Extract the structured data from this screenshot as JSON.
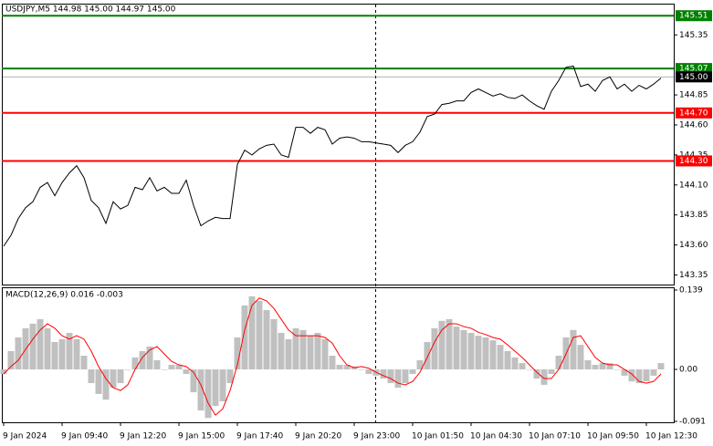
{
  "chart_data": [
    {
      "type": "line",
      "title": "USDJPY,M5  144.98 145.00 144.97 145.00",
      "color": "#000000",
      "values": [
        143.59,
        143.68,
        143.82,
        143.91,
        143.96,
        144.08,
        144.12,
        144.01,
        144.12,
        144.2,
        144.26,
        144.16,
        143.97,
        143.91,
        143.78,
        143.96,
        143.9,
        143.93,
        144.08,
        144.06,
        144.16,
        144.05,
        144.08,
        144.03,
        144.03,
        144.14,
        143.93,
        143.76,
        143.8,
        143.83,
        143.82,
        143.82,
        144.27,
        144.39,
        144.35,
        144.4,
        144.43,
        144.44,
        144.35,
        144.33,
        144.58,
        144.58,
        144.53,
        144.58,
        144.56,
        144.44,
        144.49,
        144.5,
        144.49,
        144.46,
        144.46,
        144.45,
        144.44,
        144.43,
        144.37,
        144.43,
        144.46,
        144.54,
        144.67,
        144.69,
        144.77,
        144.78,
        144.8,
        144.8,
        144.87,
        144.9,
        144.87,
        144.84,
        144.86,
        144.83,
        144.82,
        144.85,
        144.8,
        144.76,
        144.73,
        144.88,
        144.97,
        145.08,
        145.09,
        144.92,
        144.94,
        144.88,
        144.97,
        145.0,
        144.9,
        144.94,
        144.88,
        144.93,
        144.9,
        144.94,
        144.99
      ],
      "ylim": [
        143.27,
        145.58
      ],
      "yticks": [
        143.35,
        {
          "value": 143.6,
          "label": "143.60"
        },
        143.85,
        {
          "value": 144.1,
          "label": "144.10"
        },
        144.35,
        {
          "value": 144.6,
          "label": "144.60"
        },
        144.85,
        145.35
      ],
      "levels": [
        {
          "value": 145.51,
          "color": "#008000"
        },
        {
          "value": 145.07,
          "color": "#008000"
        },
        {
          "value": 145,
          "label": "145.00",
          "color": "#000000"
        },
        {
          "value": 144.7,
          "label": "144.70",
          "color": "#ff0000"
        },
        {
          "value": 144.3,
          "label": "144.30",
          "color": "#ff0000"
        }
      ]
    },
    {
      "type": "bar",
      "title": "MACD(12,26,9) 0.016 -0.003",
      "color": "#c0c0c0",
      "categories": [
        "9 Jan 2024",
        null,
        null,
        null,
        null,
        null,
        null,
        null,
        "9 Jan 09:40",
        null,
        null,
        null,
        null,
        null,
        null,
        null,
        "9 Jan 12:20",
        null,
        null,
        null,
        null,
        null,
        null,
        null,
        "9 Jan 15:00",
        null,
        null,
        null,
        null,
        null,
        null,
        null,
        "9 Jan 17:40",
        null,
        null,
        null,
        null,
        null,
        null,
        null,
        "9 Jan 20:20",
        null,
        null,
        null,
        null,
        null,
        null,
        null,
        "9 Jan 23:00",
        null,
        null,
        null,
        null,
        null,
        null,
        null,
        "10 Jan 01:50",
        null,
        null,
        null,
        null,
        null,
        null,
        null,
        "10 Jan 04:30",
        null,
        null,
        null,
        null,
        null,
        null,
        null,
        "10 Jan 07:10",
        null,
        null,
        null,
        null,
        null,
        null,
        null,
        "10 Jan 09:50",
        null,
        null,
        null,
        null,
        null,
        null,
        null,
        "10 Jan 12:30",
        null,
        null
      ],
      "values": [
        -0.008,
        0.032,
        0.056,
        0.072,
        0.08,
        0.088,
        0.072,
        0.048,
        0.053,
        0.064,
        0.053,
        0.024,
        -0.024,
        -0.043,
        -0.053,
        -0.032,
        -0.024,
        0,
        0.021,
        0.032,
        0.04,
        0.016,
        0,
        0.008,
        0.008,
        -0.008,
        -0.04,
        -0.072,
        -0.085,
        -0.064,
        -0.056,
        -0.024,
        0.056,
        0.112,
        0.128,
        0.12,
        0.104,
        0.088,
        0.064,
        0.053,
        0.072,
        0.069,
        0.059,
        0.064,
        0.053,
        0.024,
        0.008,
        0.008,
        0.005,
        0,
        -0.008,
        -0.011,
        -0.016,
        -0.024,
        -0.032,
        -0.024,
        -0.008,
        0.016,
        0.048,
        0.072,
        0.085,
        0.088,
        0.075,
        0.069,
        0.064,
        0.059,
        0.056,
        0.051,
        0.043,
        0.032,
        0.021,
        0.011,
        0,
        -0.016,
        -0.027,
        -0.008,
        0.024,
        0.056,
        0.069,
        0.043,
        0.016,
        0.008,
        0.011,
        0.011,
        0,
        -0.011,
        -0.021,
        -0.024,
        -0.021,
        -0.011,
        0.011
      ],
      "signal": {
        "color": "#ff0000",
        "values": [
          -0.008,
          0.005,
          0.016,
          0.035,
          0.053,
          0.069,
          0.08,
          0.072,
          0.059,
          0.053,
          0.059,
          0.053,
          0.032,
          0.005,
          -0.016,
          -0.032,
          -0.037,
          -0.027,
          0,
          0.021,
          0.034,
          0.04,
          0.027,
          0.014,
          0.008,
          0.005,
          -0.005,
          -0.027,
          -0.059,
          -0.08,
          -0.069,
          -0.037,
          0.008,
          0.069,
          0.112,
          0.125,
          0.12,
          0.107,
          0.088,
          0.069,
          0.059,
          0.059,
          0.059,
          0.059,
          0.056,
          0.046,
          0.024,
          0.008,
          0.003,
          0.005,
          0.002,
          -0.005,
          -0.011,
          -0.016,
          -0.024,
          -0.027,
          -0.021,
          -0.005,
          0.021,
          0.048,
          0.069,
          0.08,
          0.08,
          0.075,
          0.072,
          0.065,
          0.061,
          0.056,
          0.053,
          0.043,
          0.032,
          0.021,
          0.008,
          -0.005,
          -0.016,
          -0.016,
          0,
          0.027,
          0.056,
          0.059,
          0.04,
          0.021,
          0.011,
          0.008,
          0.008,
          0,
          -0.008,
          -0.021,
          -0.024,
          -0.021,
          -0.008
        ]
      },
      "ylim": [
        -0.091,
        0.139
      ],
      "yticks": [
        0.139,
        {
          "value": 0,
          "label": "0.00"
        },
        -0.091
      ]
    }
  ]
}
